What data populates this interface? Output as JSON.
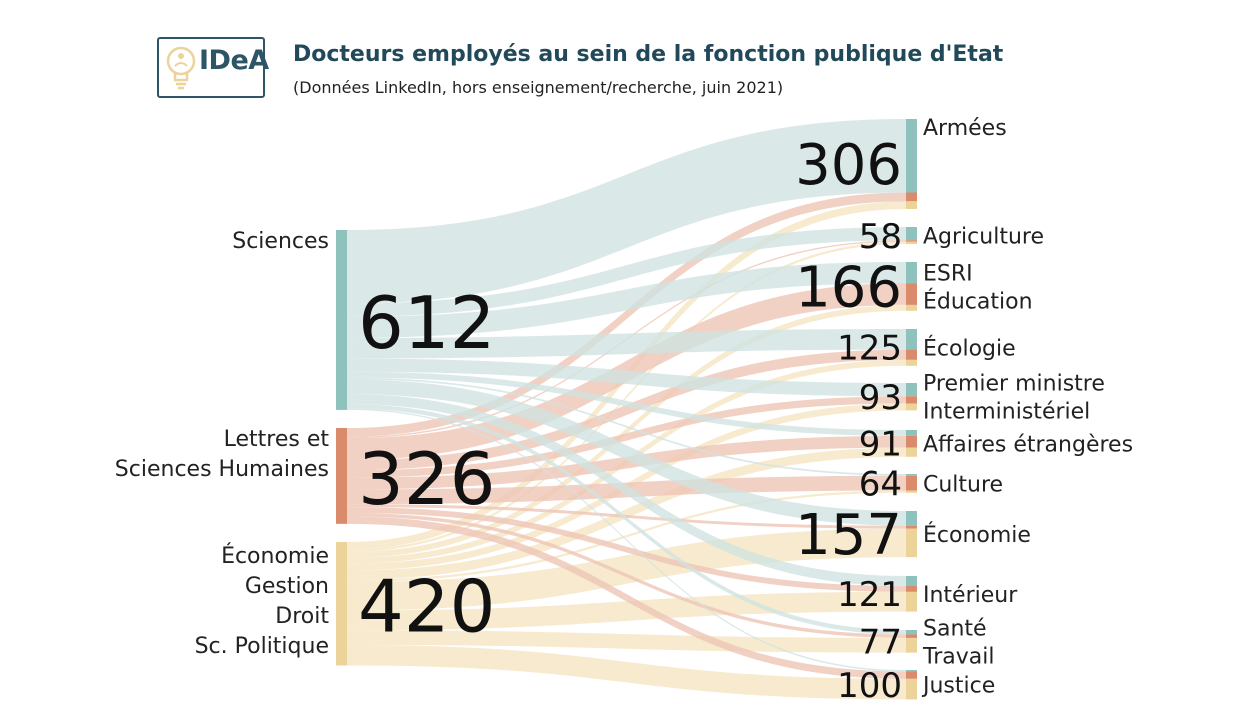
{
  "header": {
    "logo_text": "IDeA",
    "title": "Docteurs employés au sein de la fonction publique d'Etat",
    "subtitle": "(Données LinkedIn, hors enseignement/recherche, juin 2021)"
  },
  "chart_data": {
    "type": "sankey",
    "title": "Docteurs employés au sein de la fonction publique d'Etat",
    "subtitle": "(Données LinkedIn, hors enseignement/recherche, juin 2021)",
    "sources": [
      {
        "id": "sci",
        "label_lines": [
          "Sciences"
        ],
        "total": 612,
        "color": "#8fc1bd",
        "link_color": "#cfe3e1"
      },
      {
        "id": "lsh",
        "label_lines": [
          "Lettres et",
          "Sciences Humaines"
        ],
        "total": 326,
        "color": "#d98b6c",
        "link_color": "#eec4b5"
      },
      {
        "id": "eco",
        "label_lines": [
          "Économie",
          "Gestion",
          "Droit",
          "Sc. Politique"
        ],
        "total": 420,
        "color": "#ecd39a",
        "link_color": "#f5e4c0"
      }
    ],
    "targets": [
      {
        "id": "armees",
        "label_lines": [
          "Armées"
        ],
        "total": 306
      },
      {
        "id": "agri",
        "label_lines": [
          "Agriculture"
        ],
        "total": 58
      },
      {
        "id": "esri",
        "label_lines": [
          "ESRI",
          "Éducation"
        ],
        "total": 166
      },
      {
        "id": "ecol",
        "label_lines": [
          "Écologie"
        ],
        "total": 125
      },
      {
        "id": "pm",
        "label_lines": [
          "Premier ministre",
          "Interministériel"
        ],
        "total": 93
      },
      {
        "id": "ae",
        "label_lines": [
          "Affaires étrangères"
        ],
        "total": 91
      },
      {
        "id": "cult",
        "label_lines": [
          "Culture"
        ],
        "total": 64
      },
      {
        "id": "econ",
        "label_lines": [
          "Économie"
        ],
        "total": 157
      },
      {
        "id": "int",
        "label_lines": [
          "Intérieur"
        ],
        "total": 121
      },
      {
        "id": "sante",
        "label_lines": [
          "Santé",
          "Travail"
        ],
        "total": 77
      },
      {
        "id": "just",
        "label_lines": [
          "Justice"
        ],
        "total": 100
      }
    ],
    "flows": [
      {
        "source": "sci",
        "target": "armees",
        "value": 250
      },
      {
        "source": "lsh",
        "target": "armees",
        "value": 30
      },
      {
        "source": "eco",
        "target": "armees",
        "value": 26
      },
      {
        "source": "sci",
        "target": "agri",
        "value": 45
      },
      {
        "source": "lsh",
        "target": "agri",
        "value": 5
      },
      {
        "source": "eco",
        "target": "agri",
        "value": 8
      },
      {
        "source": "sci",
        "target": "esri",
        "value": 72
      },
      {
        "source": "lsh",
        "target": "esri",
        "value": 74
      },
      {
        "source": "eco",
        "target": "esri",
        "value": 20
      },
      {
        "source": "sci",
        "target": "ecol",
        "value": 70
      },
      {
        "source": "lsh",
        "target": "ecol",
        "value": 35
      },
      {
        "source": "eco",
        "target": "ecol",
        "value": 20
      },
      {
        "source": "sci",
        "target": "pm",
        "value": 45
      },
      {
        "source": "lsh",
        "target": "pm",
        "value": 25
      },
      {
        "source": "eco",
        "target": "pm",
        "value": 23
      },
      {
        "source": "sci",
        "target": "ae",
        "value": 20
      },
      {
        "source": "lsh",
        "target": "ae",
        "value": 40
      },
      {
        "source": "eco",
        "target": "ae",
        "value": 31
      },
      {
        "source": "sci",
        "target": "cult",
        "value": 6
      },
      {
        "source": "lsh",
        "target": "cult",
        "value": 50
      },
      {
        "source": "eco",
        "target": "cult",
        "value": 8
      },
      {
        "source": "sci",
        "target": "econ",
        "value": 50
      },
      {
        "source": "lsh",
        "target": "econ",
        "value": 10
      },
      {
        "source": "eco",
        "target": "econ",
        "value": 97
      },
      {
        "source": "sci",
        "target": "int",
        "value": 34
      },
      {
        "source": "lsh",
        "target": "int",
        "value": 20
      },
      {
        "source": "eco",
        "target": "int",
        "value": 67
      },
      {
        "source": "sci",
        "target": "sante",
        "value": 15
      },
      {
        "source": "lsh",
        "target": "sante",
        "value": 12
      },
      {
        "source": "eco",
        "target": "sante",
        "value": 50
      },
      {
        "source": "sci",
        "target": "just",
        "value": 5
      },
      {
        "source": "lsh",
        "target": "just",
        "value": 25
      },
      {
        "source": "eco",
        "target": "just",
        "value": 70
      }
    ]
  }
}
